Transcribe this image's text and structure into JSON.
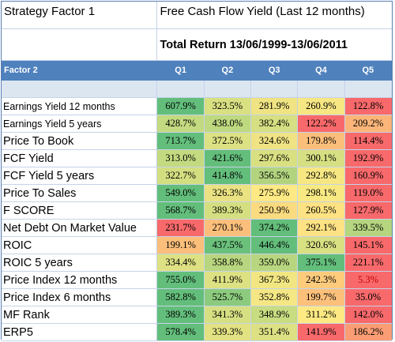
{
  "header": {
    "strategy_label": "Strategy Factor 1",
    "strategy_value": "Free Cash Flow Yield (Last 12 months)",
    "subtitle": "Total Return 13/06/1999-13/06/2011"
  },
  "columns": {
    "factor_label": "Factor 2",
    "quintiles": [
      "Q1",
      "Q2",
      "Q3",
      "Q4",
      "Q5"
    ]
  },
  "rows": [
    {
      "factor": "Earnings Yield 12 months",
      "size": "small",
      "values": [
        "607.9%",
        "323.5%",
        "281.9%",
        "260.9%",
        "122.8%"
      ],
      "colors": [
        "#63be7b",
        "#d9e082",
        "#efe383",
        "#f7e783",
        "#f8696b"
      ]
    },
    {
      "factor": "Earnings Yield 5 years",
      "size": "small",
      "values": [
        "428.7%",
        "438.0%",
        "382.4%",
        "122.2%",
        "209.2%"
      ],
      "colors": [
        "#c3da80",
        "#bfd980",
        "#d6df82",
        "#f8696b",
        "#fcb579"
      ]
    },
    {
      "factor": "Price To Book",
      "size": "big",
      "values": [
        "713.7%",
        "372.5%",
        "324.6%",
        "179.8%",
        "114.4%"
      ],
      "colors": [
        "#63be7b",
        "#dce183",
        "#f0e384",
        "#fbbf7b",
        "#f8696b"
      ]
    },
    {
      "factor": "FCF Yield",
      "size": "big",
      "values": [
        "313.0%",
        "421.6%",
        "297.6%",
        "300.1%",
        "192.9%"
      ],
      "colors": [
        "#c4da80",
        "#63be7b",
        "#d9e082",
        "#d6df82",
        "#f8696b"
      ]
    },
    {
      "factor": "FCF Yield 5 years",
      "size": "big",
      "values": [
        "322.7%",
        "414.8%",
        "356.5%",
        "292.8%",
        "160.9%"
      ],
      "colors": [
        "#d3de81",
        "#63be7b",
        "#b2d47f",
        "#f7e783",
        "#f8696b"
      ]
    },
    {
      "factor": "Price To Sales",
      "size": "big",
      "values": [
        "549.0%",
        "326.3%",
        "275.9%",
        "298.1%",
        "119.0%"
      ],
      "colors": [
        "#63be7b",
        "#eae282",
        "#fee984",
        "#f8e983",
        "#f8696b"
      ]
    },
    {
      "factor": "F SCORE",
      "size": "big",
      "values": [
        "568.7%",
        "389.3%",
        "250.9%",
        "260.5%",
        "127.9%"
      ],
      "colors": [
        "#63be7b",
        "#d5df81",
        "#fbdb80",
        "#fee283",
        "#f8696b"
      ]
    },
    {
      "factor": "Net Debt On Market Value",
      "size": "big",
      "values": [
        "231.7%",
        "270.1%",
        "374.2%",
        "292.1%",
        "339.5%"
      ],
      "colors": [
        "#f8696b",
        "#fbbf7b",
        "#63be7b",
        "#fee283",
        "#b5d57f"
      ]
    },
    {
      "factor": "ROIC",
      "size": "big",
      "values": [
        "199.1%",
        "437.5%",
        "446.4%",
        "320.6%",
        "145.1%"
      ],
      "colors": [
        "#fbbf7b",
        "#6bc17c",
        "#63be7b",
        "#d9e082",
        "#f8696b"
      ]
    },
    {
      "factor": "ROIC 5 years",
      "size": "big",
      "values": [
        "334.4%",
        "358.8%",
        "359.0%",
        "375.1%",
        "221.1%"
      ],
      "colors": [
        "#dde183",
        "#b8d67f",
        "#b8d67f",
        "#63be7b",
        "#f8696b"
      ]
    },
    {
      "factor": "Price Index 12 months",
      "size": "big",
      "values": [
        "755.0%",
        "411.9%",
        "367.3%",
        "242.3%",
        "5.3%"
      ],
      "colors": [
        "#63be7b",
        "#dde183",
        "#f2e683",
        "#fecb7d",
        "#f8696b"
      ]
    },
    {
      "factor": "Price Index 6 months",
      "size": "big",
      "values": [
        "582.8%",
        "525.7%",
        "352.8%",
        "199.7%",
        "35.0%"
      ],
      "colors": [
        "#63be7b",
        "#8ccb7e",
        "#f5e784",
        "#fcc07b",
        "#f8696b"
      ]
    },
    {
      "factor": "MF Rank",
      "size": "big",
      "values": [
        "389.3%",
        "341.3%",
        "348.9%",
        "311.2%",
        "142.0%"
      ],
      "colors": [
        "#63be7b",
        "#d6df82",
        "#c8dc81",
        "#fee983",
        "#f8696b"
      ]
    },
    {
      "factor": "ERP5",
      "size": "big",
      "values": [
        "578.4%",
        "339.3%",
        "351.4%",
        "141.9%",
        "186.2%"
      ],
      "colors": [
        "#63be7b",
        "#e2e283",
        "#dde183",
        "#f8696b",
        "#fa9d74"
      ]
    }
  ]
}
